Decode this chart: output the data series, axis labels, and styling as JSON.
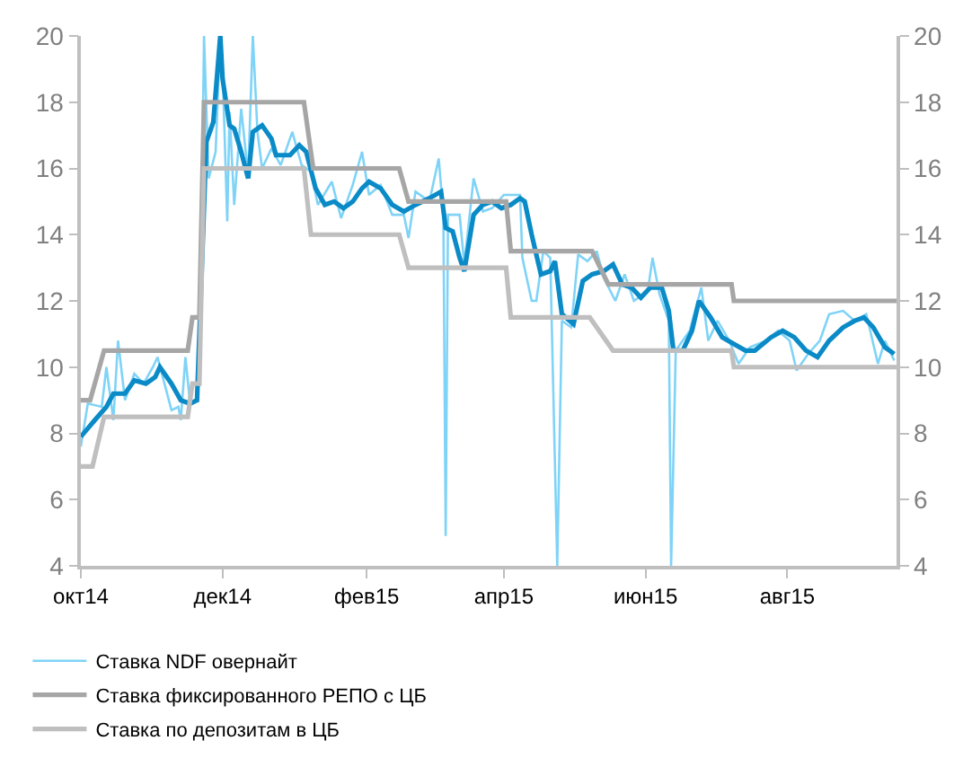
{
  "chart_data": {
    "type": "line",
    "xlim": [
      "2014-10-01",
      "2015-09-17"
    ],
    "xticks": [
      {
        "value": "2014-10-01",
        "label": "окт14"
      },
      {
        "value": "2014-12-01",
        "label": "дек14"
      },
      {
        "value": "2015-02-01",
        "label": "фев15"
      },
      {
        "value": "2015-04-01",
        "label": "апр15"
      },
      {
        "value": "2015-06-01",
        "label": "июн15"
      },
      {
        "value": "2015-08-01",
        "label": "авг15"
      }
    ],
    "ylim": [
      4,
      20
    ],
    "yticks": [
      4,
      6,
      8,
      10,
      12,
      14,
      16,
      18,
      20
    ],
    "y2lim": [
      4,
      20
    ],
    "y2ticks": [
      4,
      6,
      8,
      10,
      12,
      14,
      16,
      18,
      20
    ],
    "legend": "bottom",
    "marker": "none",
    "line_style": "solid",
    "series": [
      {
        "name": "Ставка NDF овернайт",
        "color": "#7fd3f7",
        "x": [
          "2014-10-01",
          "2014-10-04",
          "2014-10-10",
          "2014-10-12",
          "2014-10-15",
          "2014-10-17",
          "2014-10-20",
          "2014-10-24",
          "2014-10-28",
          "2014-11-01",
          "2014-11-03",
          "2014-11-06",
          "2014-11-09",
          "2014-11-12",
          "2014-11-13",
          "2014-11-15",
          "2014-11-17",
          "2014-11-20",
          "2014-11-22",
          "2014-11-23",
          "2014-11-25",
          "2014-11-28",
          "2014-11-30",
          "2014-12-01",
          "2014-12-03",
          "2014-12-04",
          "2014-12-06",
          "2014-12-09",
          "2014-12-12",
          "2014-12-14",
          "2014-12-16",
          "2014-12-18",
          "2014-12-22",
          "2014-12-26",
          "2014-12-31",
          "2015-01-04",
          "2015-01-08",
          "2015-01-11",
          "2015-01-17",
          "2015-01-21",
          "2015-01-26",
          "2015-01-30",
          "2015-02-02",
          "2015-02-07",
          "2015-02-12",
          "2015-02-17",
          "2015-02-19",
          "2015-02-22",
          "2015-02-28",
          "2015-03-04",
          "2015-03-06",
          "2015-03-07",
          "2015-03-08",
          "2015-03-13",
          "2015-03-15",
          "2015-03-19",
          "2015-03-23",
          "2015-03-27",
          "2015-04-01",
          "2015-04-08",
          "2015-04-09",
          "2015-04-13",
          "2015-04-15",
          "2015-04-18",
          "2015-04-21",
          "2015-04-24",
          "2015-04-26",
          "2015-04-30",
          "2015-05-03",
          "2015-05-07",
          "2015-05-11",
          "2015-05-14",
          "2015-05-19",
          "2015-05-23",
          "2015-05-27",
          "2015-06-02",
          "2015-06-04",
          "2015-06-07",
          "2015-06-11",
          "2015-06-12",
          "2015-06-14",
          "2015-06-20",
          "2015-06-25",
          "2015-06-28",
          "2015-07-02",
          "2015-07-07",
          "2015-07-11",
          "2015-07-16",
          "2015-07-23",
          "2015-07-28",
          "2015-08-02",
          "2015-08-05",
          "2015-08-10",
          "2015-08-15",
          "2015-08-19",
          "2015-08-25",
          "2015-08-30",
          "2015-09-04",
          "2015-09-09",
          "2015-09-12",
          "2015-09-16"
        ],
        "values": [
          7.6,
          8.9,
          8.8,
          10.0,
          8.4,
          10.8,
          9.0,
          9.8,
          9.5,
          10.0,
          10.3,
          9.5,
          8.7,
          8.8,
          8.4,
          10.3,
          8.9,
          9.0,
          14.2,
          20.0,
          15.7,
          16.5,
          20.0,
          19.0,
          14.4,
          17.7,
          14.9,
          17.8,
          15.8,
          20.0,
          17.1,
          16.0,
          16.6,
          16.1,
          17.1,
          16.1,
          15.9,
          14.9,
          15.6,
          14.5,
          15.5,
          16.5,
          15.2,
          15.5,
          14.6,
          14.6,
          13.9,
          15.3,
          15.0,
          16.3,
          14.6,
          4.9,
          14.6,
          14.6,
          13.1,
          15.7,
          14.7,
          14.8,
          15.2,
          15.2,
          13.3,
          12.0,
          12.0,
          13.5,
          13.3,
          4.0,
          11.4,
          11.2,
          13.4,
          13.2,
          13.5,
          12.7,
          12.0,
          12.8,
          12.0,
          12.3,
          13.3,
          12.2,
          11.4,
          4.0,
          10.5,
          11.1,
          12.4,
          10.8,
          11.4,
          10.8,
          10.1,
          10.6,
          10.8,
          11.1,
          10.8,
          9.9,
          10.4,
          10.8,
          11.6,
          11.7,
          11.4,
          11.6,
          10.1,
          10.8,
          10.2
        ]
      },
      {
        "color": "#0a8ac6",
        "x": [
          "2014-10-01",
          "2014-10-07",
          "2014-10-12",
          "2014-10-15",
          "2014-10-20",
          "2014-10-24",
          "2014-10-29",
          "2014-11-02",
          "2014-11-04",
          "2014-11-09",
          "2014-11-13",
          "2014-11-17",
          "2014-11-20",
          "2014-11-24",
          "2014-11-27",
          "2014-11-30",
          "2014-12-01",
          "2014-12-04",
          "2014-12-06",
          "2014-12-09",
          "2014-12-12",
          "2014-12-14",
          "2014-12-18",
          "2014-12-22",
          "2014-12-24",
          "2014-12-30",
          "2015-01-03",
          "2015-01-06",
          "2015-01-10",
          "2015-01-14",
          "2015-01-18",
          "2015-01-22",
          "2015-01-26",
          "2015-01-30",
          "2015-02-02",
          "2015-02-07",
          "2015-02-12",
          "2015-02-17",
          "2015-02-22",
          "2015-02-28",
          "2015-03-05",
          "2015-03-07",
          "2015-03-10",
          "2015-03-13",
          "2015-03-15",
          "2015-03-19",
          "2015-03-23",
          "2015-03-27",
          "2015-03-31",
          "2015-04-04",
          "2015-04-08",
          "2015-04-10",
          "2015-04-13",
          "2015-04-17",
          "2015-04-21",
          "2015-04-23",
          "2015-04-26",
          "2015-05-01",
          "2015-05-05",
          "2015-05-09",
          "2015-05-14",
          "2015-05-18",
          "2015-05-22",
          "2015-05-26",
          "2015-05-30",
          "2015-06-03",
          "2015-06-08",
          "2015-06-11",
          "2015-06-13",
          "2015-06-17",
          "2015-06-21",
          "2015-06-24",
          "2015-06-29",
          "2015-07-04",
          "2015-07-09",
          "2015-07-14",
          "2015-07-18",
          "2015-07-25",
          "2015-07-30",
          "2015-08-04",
          "2015-08-09",
          "2015-08-14",
          "2015-08-19",
          "2015-08-25",
          "2015-08-30",
          "2015-09-03",
          "2015-09-07",
          "2015-09-12",
          "2015-09-16"
        ],
        "values": [
          7.9,
          8.4,
          8.8,
          9.2,
          9.2,
          9.6,
          9.5,
          9.7,
          10.0,
          9.5,
          9.0,
          8.9,
          9.0,
          16.8,
          17.4,
          20.0,
          18.7,
          17.3,
          17.2,
          16.5,
          15.7,
          17.1,
          17.3,
          16.9,
          16.4,
          16.4,
          16.7,
          16.5,
          15.4,
          14.9,
          15.0,
          14.8,
          15.0,
          15.4,
          15.6,
          15.4,
          14.9,
          14.7,
          14.9,
          15.1,
          15.3,
          14.2,
          14.1,
          13.3,
          12.9,
          14.6,
          14.9,
          15.0,
          14.8,
          14.9,
          15.1,
          15.0,
          14.0,
          12.8,
          12.9,
          13.2,
          11.6,
          11.3,
          12.6,
          12.8,
          12.9,
          13.1,
          12.5,
          12.4,
          12.1,
          12.4,
          12.4,
          11.7,
          10.5,
          10.5,
          11.1,
          12.0,
          11.5,
          10.9,
          10.7,
          10.5,
          10.5,
          10.9,
          11.1,
          10.9,
          10.5,
          10.3,
          10.8,
          11.2,
          11.4,
          11.5,
          11.2,
          10.6,
          10.4
        ]
      },
      {
        "name": "Ставка фиксированного РЕПО с ЦБ",
        "color": "#a6a6a6",
        "x": [
          "2014-10-01",
          "2014-10-05",
          "2014-10-11",
          "2014-11-16",
          "2014-11-18",
          "2014-11-21",
          "2014-11-23",
          "2015-01-05",
          "2015-01-09",
          "2015-02-15",
          "2015-02-19",
          "2015-04-02",
          "2015-04-04",
          "2015-05-09",
          "2015-05-16",
          "2015-07-08",
          "2015-07-09",
          "2015-09-17"
        ],
        "values": [
          9,
          9,
          10.5,
          10.5,
          11.5,
          11.5,
          18,
          18,
          16,
          16,
          15,
          15,
          13.5,
          13.5,
          12.5,
          12.5,
          12,
          12
        ]
      },
      {
        "name": "Ставка по депозитам в ЦБ",
        "color": "#bfbfbf",
        "x": [
          "2014-10-01",
          "2014-10-06",
          "2014-10-11",
          "2014-11-16",
          "2014-11-18",
          "2014-11-21",
          "2014-11-23",
          "2015-01-05",
          "2015-01-08",
          "2015-02-15",
          "2015-02-19",
          "2015-04-02",
          "2015-04-04",
          "2015-05-08",
          "2015-05-18",
          "2015-07-08",
          "2015-07-09",
          "2015-09-17"
        ],
        "values": [
          7,
          7,
          8.5,
          8.5,
          9.5,
          9.5,
          16,
          16,
          14,
          14,
          13,
          13,
          11.5,
          11.5,
          10.5,
          10.5,
          10,
          10
        ]
      }
    ]
  }
}
